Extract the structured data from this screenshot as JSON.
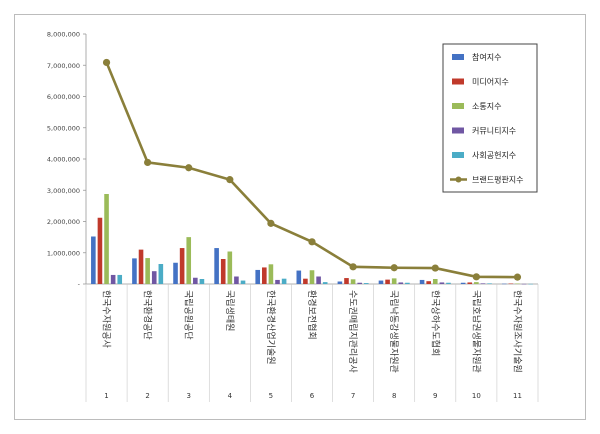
{
  "chart_data": {
    "type": "bar",
    "title": "",
    "xlabel": "",
    "ylabel": "",
    "ylim": [
      0,
      8000000
    ],
    "y_ticks": [
      "-",
      "1,000,000",
      "2,000,000",
      "3,000,000",
      "4,000,000",
      "5,000,000",
      "6,000,000",
      "7,000,000",
      "8,000,000"
    ],
    "x": [
      "1",
      "2",
      "3",
      "4",
      "5",
      "6",
      "7",
      "8",
      "9",
      "10",
      "11"
    ],
    "categories": [
      "한국수자원공사",
      "한국환경공단",
      "국립공원공단",
      "국립생태원",
      "한국환경산업기술원",
      "환경보전협회",
      "수도권매립지관리공사",
      "국립낙동강생물자원관",
      "한국상하수도협회",
      "국립호남권생물자원관",
      "한국수자원조사기술원"
    ],
    "series": [
      {
        "name": "참여지수",
        "kind": "bar",
        "color": "#4472c4",
        "values": [
          1520000,
          820000,
          680000,
          1150000,
          450000,
          430000,
          80000,
          110000,
          130000,
          40000,
          10000
        ]
      },
      {
        "name": "미디어지수",
        "kind": "bar",
        "color": "#c0392b",
        "values": [
          2120000,
          1100000,
          1150000,
          800000,
          530000,
          170000,
          190000,
          140000,
          90000,
          50000,
          15000
        ]
      },
      {
        "name": "소통지수",
        "kind": "bar",
        "color": "#9bbb59",
        "values": [
          2880000,
          830000,
          1500000,
          1040000,
          630000,
          440000,
          150000,
          180000,
          160000,
          60000,
          15000
        ]
      },
      {
        "name": "커뮤니티지수",
        "kind": "bar",
        "color": "#7057a3",
        "values": [
          290000,
          410000,
          200000,
          240000,
          130000,
          240000,
          40000,
          50000,
          50000,
          20000,
          5000
        ]
      },
      {
        "name": "사회공헌지수",
        "kind": "bar",
        "color": "#4bacc6",
        "values": [
          290000,
          640000,
          160000,
          110000,
          170000,
          60000,
          30000,
          40000,
          40000,
          20000,
          5000
        ]
      },
      {
        "name": "브랜드평판지수",
        "kind": "line",
        "color": "#8a7f3a",
        "values": [
          7090000,
          3890000,
          3720000,
          3340000,
          1940000,
          1350000,
          550000,
          520000,
          510000,
          230000,
          220000
        ]
      }
    ],
    "legend_position": "top-right",
    "grid": false
  }
}
